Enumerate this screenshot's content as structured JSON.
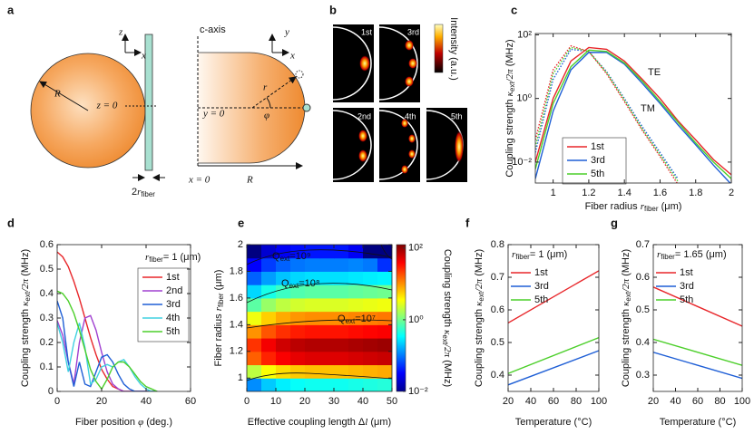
{
  "diagram_a": {
    "panel_label": "a",
    "radius": "R",
    "axis_z": "z",
    "axis_x": "x",
    "z_zero": "z = 0",
    "fiber_width": [
      {
        "t": "2"
      },
      {
        "t": "r",
        "italic": true
      },
      {
        "t": "fiber",
        "sub": true
      }
    ],
    "c_axis": "c-axis",
    "axis_y": "y",
    "axis_x2": "x",
    "r": "r",
    "phi": "φ",
    "y_zero": "y = 0",
    "x_zero": "x = 0",
    "radius2": "R"
  },
  "panel_b": {
    "panel_label": "b",
    "modes": [
      "1st",
      "3rd",
      "2nd",
      "4th",
      "5th"
    ],
    "colorbar_label": "Intensity (a.u.)"
  },
  "chart_data": [
    {
      "type": "line",
      "panel_label": "c",
      "ylog": true,
      "x": [
        0.9,
        1.0,
        1.1,
        1.2,
        1.3,
        1.4,
        1.5,
        1.6,
        1.7,
        1.8,
        1.9,
        2.0
      ],
      "series": [
        {
          "name": "1st",
          "color": "#e8262a",
          "values": [
            0.01,
            1,
            15,
            40,
            35,
            15,
            4,
            1,
            0.2,
            0.05,
            0.012,
            0.004
          ]
        },
        {
          "name": "3rd",
          "color": "#1f5fd6",
          "values": [
            0.003,
            0.4,
            8,
            28,
            28,
            12,
            3,
            0.7,
            0.15,
            0.035,
            0.008,
            0.002
          ]
        },
        {
          "name": "5th",
          "color": "#4ccf2a",
          "values": [
            0.006,
            0.7,
            10,
            33,
            30,
            13,
            3.5,
            0.8,
            0.18,
            0.04,
            0.01,
            0.003
          ]
        }
      ],
      "dotted_series": [
        {
          "color": "#e8262a",
          "values": [
            0.05,
            8,
            45,
            30,
            6,
            0.8,
            0.1,
            0.015,
            0.002,
            null,
            null,
            null
          ]
        },
        {
          "color": "#1f5fd6",
          "values": [
            0.02,
            4,
            35,
            30,
            7,
            1,
            0.13,
            0.02,
            0.003,
            null,
            null,
            null
          ]
        },
        {
          "color": "#4ccf2a",
          "values": [
            0.03,
            6,
            40,
            30,
            6.5,
            0.9,
            0.11,
            0.017,
            0.0025,
            null,
            null,
            null
          ]
        }
      ],
      "xlim": [
        0.9,
        2
      ],
      "xticks": [
        1,
        1.2,
        1.4,
        1.6,
        1.8,
        2
      ],
      "ylim": [
        0.0022,
        110
      ],
      "yticks": [
        {
          "value": 0.01,
          "label": "10⁻²"
        },
        {
          "value": 1,
          "label": "10⁰"
        },
        {
          "value": 100,
          "label": "10²"
        }
      ],
      "xlabel": [
        {
          "t": "Fiber radius "
        },
        {
          "t": "r",
          "italic": true
        },
        {
          "t": "fiber",
          "sub": true
        },
        {
          "t": " (μm)"
        }
      ],
      "ylabel": [
        {
          "t": "Coupling strength "
        },
        {
          "t": "κ",
          "italic": true
        },
        {
          "t": "ext",
          "sub": true
        },
        {
          "t": "/2π",
          "italic": true
        },
        {
          "t": " (MHz)"
        }
      ],
      "annotations": [
        [
          {
            "t": "TE"
          }
        ],
        [
          {
            "t": "TM"
          }
        ]
      ],
      "legend": "lower left"
    },
    {
      "type": "line",
      "panel_label": "d",
      "x": [
        0,
        2.5,
        5,
        7.5,
        10,
        12.5,
        15,
        17.5,
        20,
        22.5,
        25,
        27.5,
        30,
        32.5,
        35,
        37.5,
        40,
        42.5,
        45
      ],
      "series": [
        {
          "name": "1st",
          "color": "#e8262a",
          "values": [
            0.57,
            0.55,
            0.51,
            0.45,
            0.38,
            0.3,
            0.22,
            0.15,
            0.09,
            0.05,
            0.02,
            0.01,
            0,
            0,
            0,
            0,
            0,
            0,
            0
          ]
        },
        {
          "name": "2nd",
          "color": "#a040d0",
          "values": [
            0.29,
            0.23,
            0.12,
            0.03,
            0.2,
            0.3,
            0.31,
            0.25,
            0.16,
            0.08,
            0.03,
            0.01,
            0,
            0,
            0,
            0,
            0,
            0,
            0
          ]
        },
        {
          "name": "3rd",
          "color": "#1f5fd6",
          "values": [
            0.37,
            0.3,
            0.12,
            0.02,
            0.12,
            0.03,
            0.02,
            0.08,
            0.14,
            0.15,
            0.12,
            0.07,
            0.03,
            0.01,
            0,
            0,
            0,
            0,
            0
          ]
        },
        {
          "name": "4th",
          "color": "#40d0e0",
          "values": [
            0.28,
            0.2,
            0.08,
            0.2,
            0.28,
            0.18,
            0.03,
            0.05,
            0.1,
            0.11,
            0.1,
            0.12,
            0.13,
            0.1,
            0.06,
            0.03,
            0.01,
            0,
            0
          ]
        },
        {
          "name": "5th",
          "color": "#4ccf2a",
          "values": [
            0.41,
            0.4,
            0.37,
            0.32,
            0.25,
            0.17,
            0.09,
            0.04,
            0.01,
            0.05,
            0.1,
            0.12,
            0.12,
            0.1,
            0.07,
            0.04,
            0.02,
            0.01,
            0
          ]
        }
      ],
      "xlim": [
        0,
        60
      ],
      "xticks": [
        0,
        20,
        40,
        60
      ],
      "ylim": [
        0,
        0.6
      ],
      "yticks": [
        0,
        0.1,
        0.2,
        0.3,
        0.4,
        0.5,
        0.6
      ],
      "xlabel": [
        {
          "t": "Fiber position "
        },
        {
          "t": "φ",
          "italic": true
        },
        {
          "t": " (deg.)"
        }
      ],
      "ylabel": [
        {
          "t": "Coupling strength "
        },
        {
          "t": "κ",
          "italic": true
        },
        {
          "t": "ext",
          "sub": true
        },
        {
          "t": "/2π",
          "italic": true
        },
        {
          "t": " (MHz)"
        }
      ],
      "annotations": [
        [
          {
            "t": "r",
            "italic": true
          },
          {
            "t": "fiber",
            "sub": true
          },
          {
            "t": "= 1 (μm)"
          }
        ]
      ],
      "legend": "upper right"
    },
    {
      "type": "heatmap",
      "panel_label": "e",
      "x": [
        2.5,
        7.5,
        12.5,
        17.5,
        22.5,
        27.5,
        32.5,
        37.5,
        42.5,
        47.5
      ],
      "y": [
        0.95,
        1.05,
        1.15,
        1.25,
        1.35,
        1.45,
        1.55,
        1.65,
        1.75,
        1.85,
        1.95
      ],
      "z": [
        [
          0.12,
          0.21,
          0.3,
          0.36,
          0.39,
          0.39,
          0.39,
          0.42,
          0.45,
          0.48
        ],
        [
          2,
          3.5,
          5,
          6,
          6.5,
          6.5,
          6.5,
          7,
          7.5,
          8
        ],
        [
          16,
          28,
          40,
          48,
          52,
          52,
          52,
          56,
          60,
          64
        ],
        [
          24,
          42,
          60,
          72,
          78,
          78,
          78,
          84,
          90,
          96
        ],
        [
          10,
          17.5,
          25,
          30,
          32.5,
          32.5,
          32.5,
          35,
          37.5,
          40
        ],
        [
          3.2,
          5.6,
          8,
          9.6,
          10.4,
          10.4,
          10.4,
          11.2,
          12,
          12.8
        ],
        [
          0.8,
          1.4,
          2,
          2.4,
          2.6,
          2.6,
          2.6,
          2.8,
          3,
          3.2
        ],
        [
          0.24,
          0.42,
          0.6,
          0.72,
          0.78,
          0.78,
          0.78,
          0.84,
          0.9,
          0.96
        ],
        [
          0.08,
          0.14,
          0.2,
          0.24,
          0.26,
          0.26,
          0.26,
          0.28,
          0.3,
          0.32
        ],
        [
          0.032,
          0.056,
          0.08,
          0.096,
          0.104,
          0.104,
          0.104,
          0.112,
          0.1,
          0.05
        ],
        [
          0.008,
          0.021,
          0.03,
          0.036,
          0.039,
          0.039,
          0.039,
          0.03,
          0.005,
          0.003
        ]
      ],
      "xlim": [
        0,
        50
      ],
      "xticks": [
        0,
        10,
        20,
        30,
        40,
        50
      ],
      "ylim": [
        0.9,
        2
      ],
      "yticks": [
        1,
        1.2,
        1.4,
        1.6,
        1.8,
        2
      ],
      "zlog": true,
      "zlim": [
        0.01,
        125
      ],
      "zticks": [
        {
          "value": 0.01,
          "label": "10⁻²"
        },
        {
          "value": 1,
          "label": "10⁰"
        },
        {
          "value": 100,
          "label": "10²"
        }
      ],
      "xlabel": [
        {
          "t": "Effective coupling length Δ"
        },
        {
          "t": "l",
          "italic": true
        },
        {
          "t": " (μm)"
        }
      ],
      "ylabel": [
        {
          "t": "Fiber radius "
        },
        {
          "t": "r",
          "italic": true
        },
        {
          "t": "fiber",
          "sub": true
        },
        {
          "t": " (μm)"
        }
      ],
      "zlabel": [
        {
          "t": "Coupling strength "
        },
        {
          "t": "κ",
          "italic": true
        },
        {
          "t": "ext",
          "sub": true
        },
        {
          "t": "/2π",
          "italic": true
        },
        {
          "t": " (MHz)"
        }
      ],
      "annotations": [
        [
          {
            "t": "Q"
          },
          {
            "t": "ext",
            "sub": true
          },
          {
            "t": "=10⁹"
          }
        ],
        [
          {
            "t": "Q"
          },
          {
            "t": "ext",
            "sub": true
          },
          {
            "t": "=10⁸"
          }
        ],
        [
          {
            "t": "Q"
          },
          {
            "t": "ext",
            "sub": true
          },
          {
            "t": "=10⁷"
          }
        ]
      ]
    },
    {
      "type": "line",
      "panel_label": "f",
      "x": [
        20,
        100
      ],
      "series": [
        {
          "name": "1st",
          "color": "#e8262a",
          "values": [
            0.56,
            0.72
          ]
        },
        {
          "name": "3rd",
          "color": "#1f5fd6",
          "values": [
            0.37,
            0.475
          ]
        },
        {
          "name": "5th",
          "color": "#4ccf2a",
          "values": [
            0.405,
            0.515
          ]
        }
      ],
      "xlim": [
        20,
        100
      ],
      "xticks": [
        20,
        40,
        60,
        80,
        100
      ],
      "ylim": [
        0.35,
        0.8
      ],
      "yticks": [
        0.4,
        0.5,
        0.6,
        0.7,
        0.8
      ],
      "xlabel": [
        {
          "t": "Temperature (°C)"
        }
      ],
      "ylabel": [
        {
          "t": "Coupling strength "
        },
        {
          "t": "κ",
          "italic": true
        },
        {
          "t": "ext",
          "sub": true
        },
        {
          "t": "/2π",
          "italic": true
        },
        {
          "t": " (MHz)"
        }
      ],
      "annotations": [
        [
          {
            "t": "r",
            "italic": true
          },
          {
            "t": "fiber",
            "sub": true
          },
          {
            "t": "= 1 (μm)"
          }
        ]
      ],
      "legend": "upper left"
    },
    {
      "type": "line",
      "panel_label": "g",
      "x": [
        20,
        100
      ],
      "series": [
        {
          "name": "1st",
          "color": "#e8262a",
          "values": [
            0.57,
            0.45
          ]
        },
        {
          "name": "3rd",
          "color": "#1f5fd6",
          "values": [
            0.37,
            0.29
          ]
        },
        {
          "name": "5th",
          "color": "#4ccf2a",
          "values": [
            0.41,
            0.33
          ]
        }
      ],
      "xlim": [
        20,
        100
      ],
      "xticks": [
        20,
        40,
        60,
        80,
        100
      ],
      "ylim": [
        0.25,
        0.7
      ],
      "yticks": [
        0.3,
        0.4,
        0.5,
        0.6,
        0.7
      ],
      "xlabel": [
        {
          "t": "Temperature (°C)"
        }
      ],
      "ylabel": [
        {
          "t": "Coupling strength "
        },
        {
          "t": "κ",
          "italic": true
        },
        {
          "t": "ext",
          "sub": true
        },
        {
          "t": "/2π",
          "italic": true
        },
        {
          "t": " (MHz)"
        }
      ],
      "annotations": [
        [
          {
            "t": "r",
            "italic": true
          },
          {
            "t": "fiber",
            "sub": true
          },
          {
            "t": "= 1.65 (μm)"
          }
        ]
      ],
      "legend": "upper left"
    }
  ]
}
